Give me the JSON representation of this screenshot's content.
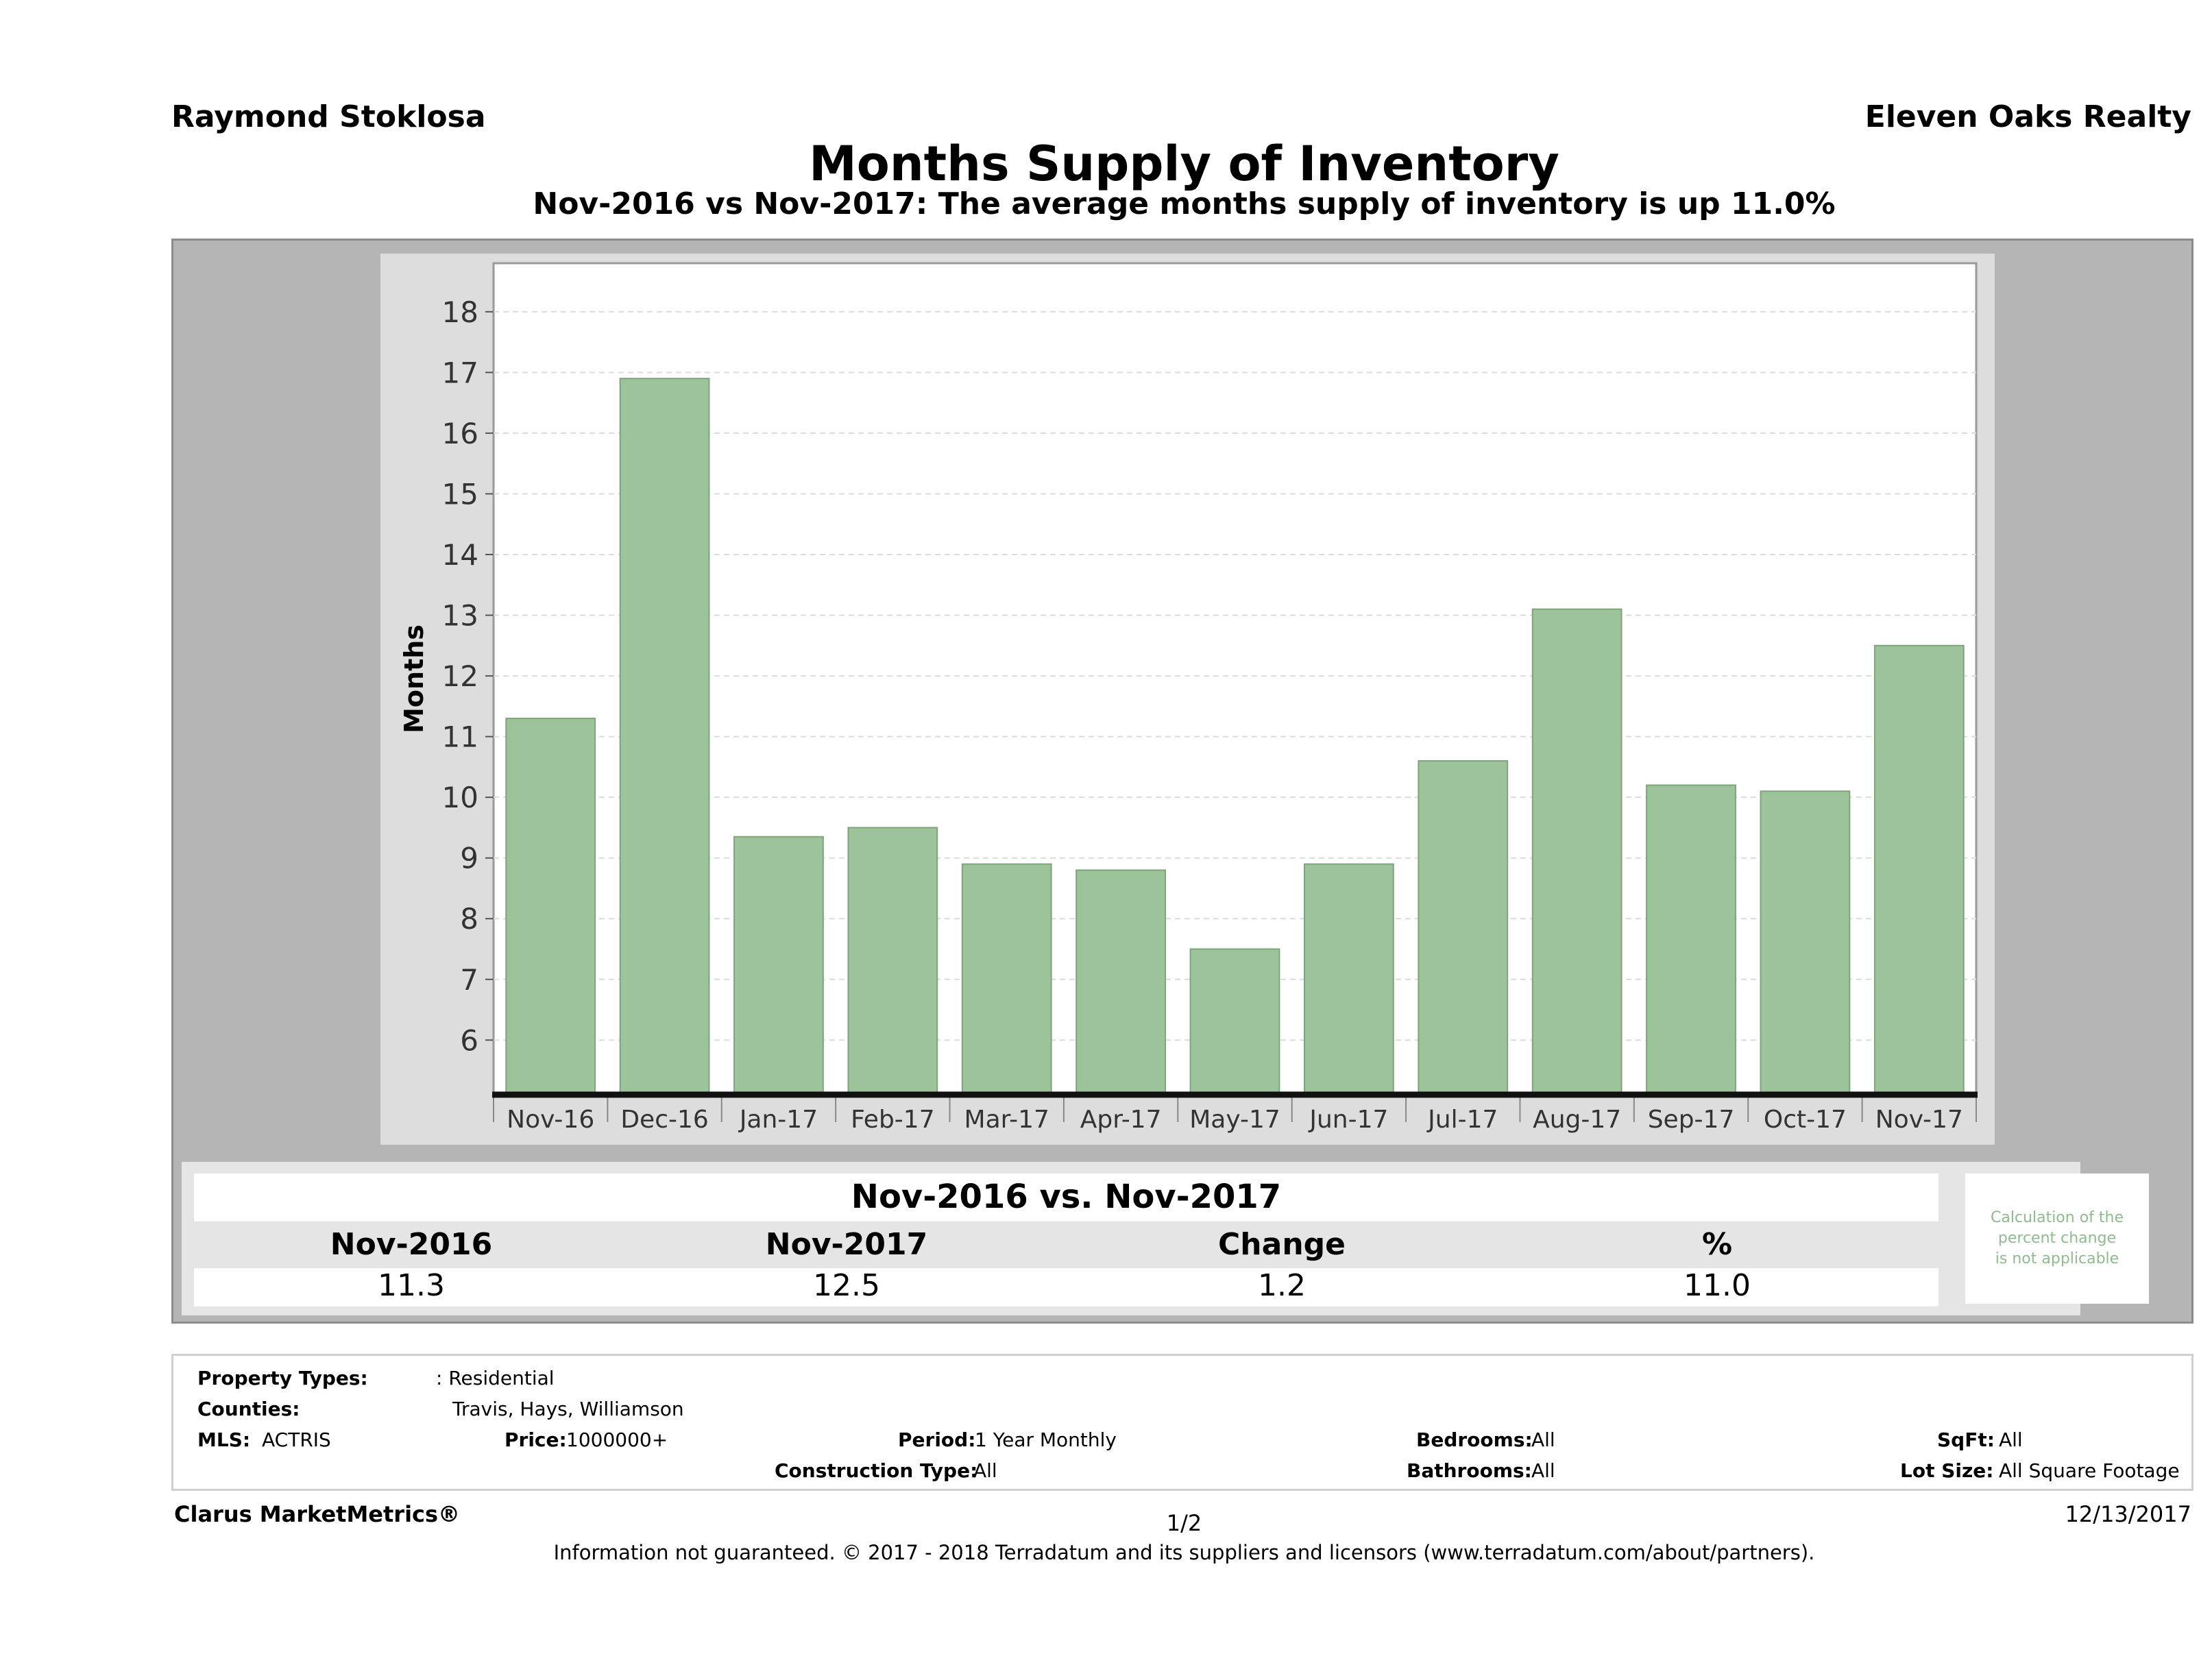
{
  "header": {
    "agent": "Raymond Stoklosa",
    "brokerage": "Eleven Oaks Realty",
    "title": "Months Supply of Inventory",
    "subtitle": "Nov-2016 vs Nov-2017: The average months supply of inventory is up 11.0%"
  },
  "chart_data": {
    "type": "bar",
    "categories": [
      "Nov-16",
      "Dec-16",
      "Jan-17",
      "Feb-17",
      "Mar-17",
      "Apr-17",
      "May-17",
      "Jun-17",
      "Jul-17",
      "Aug-17",
      "Sep-17",
      "Oct-17",
      "Nov-17"
    ],
    "values": [
      11.3,
      16.9,
      9.35,
      9.5,
      8.9,
      8.8,
      7.5,
      8.9,
      10.6,
      13.1,
      10.2,
      10.1,
      12.5
    ],
    "ylabel": "Months",
    "ylim": [
      5.1,
      18.8
    ],
    "yticks": [
      6,
      7,
      8,
      9,
      10,
      11,
      12,
      13,
      14,
      15,
      16,
      17,
      18
    ],
    "grid": true,
    "bar_color": "#9cc39a"
  },
  "comparison": {
    "title": "Nov-2016 vs. Nov-2017",
    "headers": [
      "Nov-2016",
      "Nov-2017",
      "Change",
      "%"
    ],
    "values": [
      "11.3",
      "12.5",
      "1.2",
      "11.0"
    ],
    "note_lines": [
      "Calculation of the",
      "percent change",
      "is not applicable"
    ]
  },
  "criteria": {
    "property_types_label": "Property Types:",
    "property_types_value": ": Residential",
    "counties_label": "Counties:",
    "counties_value": "Travis, Hays, Williamson",
    "mls_label": "MLS:",
    "mls_value": "ACTRIS",
    "price_label": "Price:",
    "price_value": "1000000+",
    "period_label": "Period:",
    "period_value": "1 Year Monthly",
    "construction_label": "Construction Type:",
    "construction_value": "All",
    "bedrooms_label": "Bedrooms:",
    "bedrooms_value": "All",
    "bathrooms_label": "Bathrooms:",
    "bathrooms_value": "All",
    "sqft_label": "SqFt:",
    "sqft_value": "All",
    "lot_label": "Lot Size:",
    "lot_value": "All Square Footage"
  },
  "footer": {
    "product": "Clarus MarketMetrics®",
    "page": "1/2",
    "date": "12/13/2017",
    "disclaimer": "Information not guaranteed. © 2017 - 2018 Terradatum and its suppliers and licensors (www.terradatum.com/about/partners)."
  }
}
